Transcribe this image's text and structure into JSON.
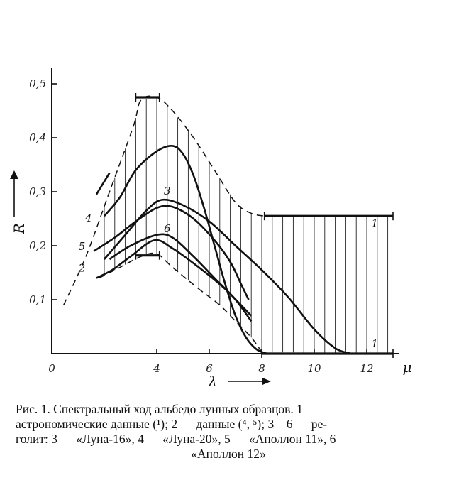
{
  "chart_data": {
    "type": "line",
    "xlabel": "λ",
    "ylabel": "R",
    "x_unit": "μ",
    "xlim": [
      0,
      13
    ],
    "ylim": [
      0,
      0.5
    ],
    "x_ticks": [
      {
        "value": 0,
        "label": "0"
      },
      {
        "value": 4,
        "label": "4"
      },
      {
        "value": 6,
        "label": "6"
      },
      {
        "value": 8,
        "label": "8"
      },
      {
        "value": 10,
        "label": "10"
      },
      {
        "value": 12,
        "label": "12"
      }
    ],
    "y_ticks": [
      {
        "value": 0.1,
        "label": "0,1"
      },
      {
        "value": 0.2,
        "label": "0,2"
      },
      {
        "value": 0.3,
        "label": "0,3"
      },
      {
        "value": 0.4,
        "label": "0,4"
      },
      {
        "value": 0.5,
        "label": "0,5"
      }
    ],
    "band": {
      "upper": [
        [
          0.45,
          0.09
        ],
        [
          1.3,
          0.18
        ],
        [
          2.2,
          0.3
        ],
        [
          3.1,
          0.42
        ],
        [
          3.4,
          0.47
        ],
        [
          4.0,
          0.475
        ],
        [
          4.6,
          0.45
        ],
        [
          5.4,
          0.4
        ],
        [
          6.2,
          0.34
        ],
        [
          7.0,
          0.28
        ],
        [
          7.6,
          0.26
        ],
        [
          8.1,
          0.255
        ],
        [
          13,
          0.255
        ]
      ],
      "lower": [
        [
          1.8,
          0.14
        ],
        [
          2.6,
          0.16
        ],
        [
          3.4,
          0.18
        ],
        [
          4.0,
          0.185
        ],
        [
          4.6,
          0.16
        ],
        [
          5.6,
          0.12
        ],
        [
          6.4,
          0.09
        ],
        [
          7.0,
          0.06
        ],
        [
          7.6,
          0.03
        ],
        [
          8.0,
          0.003
        ],
        [
          13,
          0.0
        ]
      ],
      "hatch_from": 2.0,
      "hatch_to": 13.0,
      "hatch_step": 0.4
    },
    "series": [
      {
        "name": "1",
        "values": [
          [
            3.2,
            0.475
          ],
          [
            4.1,
            0.475
          ]
        ]
      },
      {
        "name": "1",
        "values": [
          [
            3.2,
            0.182
          ],
          [
            4.1,
            0.182
          ]
        ]
      },
      {
        "name": "1",
        "values": [
          [
            8.1,
            0.255
          ],
          [
            13,
            0.255
          ]
        ]
      },
      {
        "name": "1",
        "values": [
          [
            8.0,
            0.0
          ],
          [
            13,
            0.0
          ]
        ]
      },
      {
        "name": "2",
        "values": [
          [
            1.7,
            0.295
          ],
          [
            2.2,
            0.335
          ]
        ]
      },
      {
        "name": "2",
        "values": [
          [
            1.7,
            0.14
          ],
          [
            2.3,
            0.155
          ],
          [
            3.0,
            0.18
          ],
          [
            3.9,
            0.21
          ],
          [
            4.6,
            0.195
          ],
          [
            5.6,
            0.16
          ],
          [
            6.6,
            0.12
          ],
          [
            7.6,
            0.07
          ]
        ]
      },
      {
        "name": "3",
        "values": [
          [
            2.0,
            0.175
          ],
          [
            2.8,
            0.22
          ],
          [
            3.6,
            0.265
          ],
          [
            4.2,
            0.285
          ],
          [
            5.0,
            0.275
          ],
          [
            6.0,
            0.245
          ],
          [
            7.0,
            0.2
          ],
          [
            8.0,
            0.155
          ],
          [
            9.0,
            0.105
          ],
          [
            10.0,
            0.045
          ],
          [
            10.8,
            0.01
          ],
          [
            11.4,
            0.0
          ]
        ]
      },
      {
        "name": "4",
        "values": [
          [
            2.0,
            0.255
          ],
          [
            2.6,
            0.29
          ],
          [
            3.2,
            0.34
          ],
          [
            4.0,
            0.375
          ],
          [
            4.6,
            0.385
          ],
          [
            5.0,
            0.37
          ],
          [
            5.4,
            0.33
          ],
          [
            5.8,
            0.27
          ],
          [
            6.2,
            0.2
          ],
          [
            6.6,
            0.13
          ],
          [
            7.0,
            0.07
          ],
          [
            7.4,
            0.03
          ],
          [
            7.8,
            0.008
          ],
          [
            8.2,
            0.0
          ]
        ]
      },
      {
        "name": "5",
        "values": [
          [
            1.6,
            0.19
          ],
          [
            2.4,
            0.215
          ],
          [
            3.2,
            0.245
          ],
          [
            4.0,
            0.27
          ],
          [
            4.6,
            0.272
          ],
          [
            5.4,
            0.25
          ],
          [
            6.2,
            0.21
          ],
          [
            6.8,
            0.17
          ],
          [
            7.2,
            0.13
          ],
          [
            7.5,
            0.1
          ]
        ]
      },
      {
        "name": "6",
        "values": [
          [
            2.2,
            0.175
          ],
          [
            3.0,
            0.2
          ],
          [
            4.0,
            0.22
          ],
          [
            4.6,
            0.215
          ],
          [
            5.4,
            0.18
          ],
          [
            6.2,
            0.14
          ],
          [
            7.0,
            0.1
          ],
          [
            7.6,
            0.06
          ]
        ]
      }
    ],
    "curve_labels": [
      {
        "text": "1",
        "x": 12.3,
        "y": 0.235
      },
      {
        "text": "1",
        "x": 12.3,
        "y": 0.012
      },
      {
        "text": "2",
        "x": 1.15,
        "y": 0.152
      },
      {
        "text": "3",
        "x": 4.4,
        "y": 0.295
      },
      {
        "text": "4",
        "x": 1.4,
        "y": 0.245
      },
      {
        "text": "5",
        "x": 1.15,
        "y": 0.192
      },
      {
        "text": "6",
        "x": 4.4,
        "y": 0.225
      }
    ]
  },
  "caption": {
    "line1": "Рис. 1. Спектральный ход альбедо лунных образцов. 1 —",
    "line2": "астрономические данные (¹); 2 — данные (⁴, ⁵); 3—6 — ре-",
    "line3": "голит: 3 — «Луна-16», 4 — «Луна-20», 5 — «Аполлон 11», 6 —",
    "line4": "«Аполлон 12»"
  }
}
